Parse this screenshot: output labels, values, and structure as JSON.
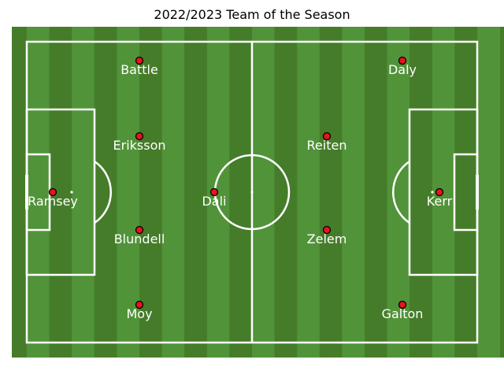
{
  "title": "2022/2023 Team of the Season",
  "colors": {
    "grass_dark": "#457c2a",
    "grass_light": "#519339",
    "line": "#ffffff",
    "marker_fill": "#e8131b",
    "marker_stroke": "#000000"
  },
  "players": [
    {
      "name": "Ramsey",
      "row": 1,
      "column": 1
    },
    {
      "name": "Battle",
      "row": 0,
      "column": 2
    },
    {
      "name": "Eriksson",
      "row": 1,
      "column": 2
    },
    {
      "name": "Blundell",
      "row": 2,
      "column": 2
    },
    {
      "name": "Moy",
      "row": 3,
      "column": 2
    },
    {
      "name": "Dali",
      "row": 1,
      "column": 3
    },
    {
      "name": "Reiten",
      "row": 1,
      "column": 4
    },
    {
      "name": "Zelem",
      "row": 2,
      "column": 4
    },
    {
      "name": "Daly",
      "row": 0,
      "column": 5
    },
    {
      "name": "Kerr",
      "row": 1,
      "column": 6
    },
    {
      "name": "Galton",
      "row": 3,
      "column": 5
    }
  ]
}
